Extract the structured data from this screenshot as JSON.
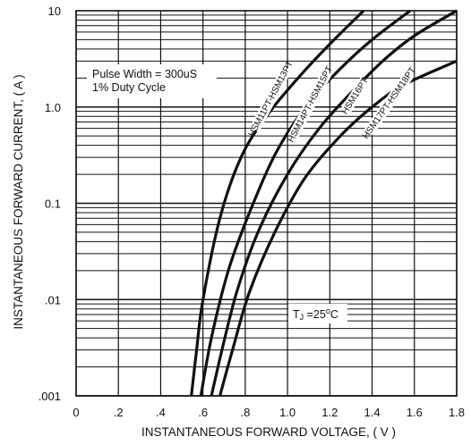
{
  "chart_data": {
    "type": "line",
    "title": "",
    "xlabel": "INSTANTANEOUS FORWARD VOLTAGE, ( V )",
    "ylabel": "INSTANTANEOUS FORWARD CURRENT, ( A )",
    "xlim": [
      0,
      1.8
    ],
    "ylim": [
      0.001,
      10
    ],
    "yscale": "log",
    "grid": true,
    "x_ticks": [
      "0",
      ".2",
      ".4",
      ".6",
      ".8",
      "1.0",
      "1.2",
      "1.4",
      "1.6",
      "1.8"
    ],
    "y_ticks": [
      ".001",
      ".01",
      "0.1",
      "1.0",
      "10"
    ],
    "series": [
      {
        "name": "HSM11PT-HSM13PT",
        "points": [
          [
            0.545,
            0.001
          ],
          [
            0.57,
            0.003
          ],
          [
            0.6,
            0.01
          ],
          [
            0.68,
            0.07
          ],
          [
            0.78,
            0.3
          ],
          [
            0.9,
            0.8
          ],
          [
            1.05,
            2.0
          ],
          [
            1.2,
            4.5
          ],
          [
            1.36,
            10
          ]
        ]
      },
      {
        "name": "HSM14PT-HSM15PT",
        "points": [
          [
            0.59,
            0.001
          ],
          [
            0.64,
            0.004
          ],
          [
            0.72,
            0.02
          ],
          [
            0.82,
            0.08
          ],
          [
            0.95,
            0.35
          ],
          [
            1.1,
            1.1
          ],
          [
            1.25,
            2.5
          ],
          [
            1.4,
            5.0
          ],
          [
            1.58,
            10
          ]
        ]
      },
      {
        "name": "HSM16PT",
        "points": [
          [
            0.64,
            0.001
          ],
          [
            0.69,
            0.003
          ],
          [
            0.76,
            0.012
          ],
          [
            0.86,
            0.05
          ],
          [
            1.0,
            0.2
          ],
          [
            1.15,
            0.6
          ],
          [
            1.3,
            1.4
          ],
          [
            1.45,
            3.0
          ],
          [
            1.6,
            5.5
          ],
          [
            1.8,
            10
          ]
        ]
      },
      {
        "name": "HSM17PT-HSM18PT",
        "points": [
          [
            0.68,
            0.001
          ],
          [
            0.74,
            0.003
          ],
          [
            0.82,
            0.012
          ],
          [
            0.94,
            0.05
          ],
          [
            1.08,
            0.18
          ],
          [
            1.25,
            0.5
          ],
          [
            1.4,
            1.0
          ],
          [
            1.55,
            1.7
          ],
          [
            1.8,
            3.0
          ]
        ]
      }
    ],
    "annotations": [
      "Pulse Width = 300uS",
      "1% Duty Cycle",
      "TJ =25°C"
    ]
  },
  "labels": {
    "pulse_width": "Pulse Width = 300uS",
    "duty_cycle": "1% Duty Cycle",
    "tj_main": "T",
    "tj_sub": "J",
    "tj_rest": " =25",
    "tj_deg": "o",
    "tj_unit": "C"
  },
  "colors": {
    "line": "#111111",
    "background": "#ffffff"
  }
}
